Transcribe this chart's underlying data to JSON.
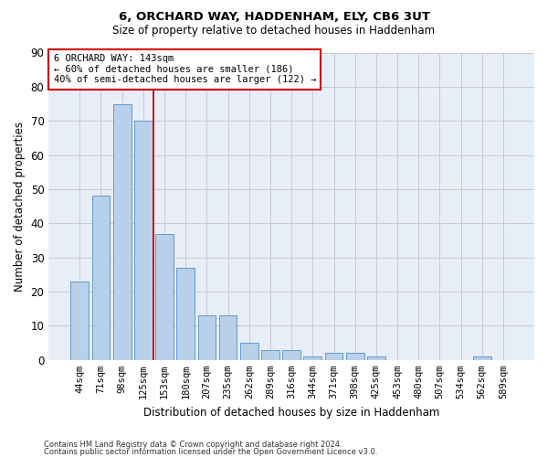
{
  "title1": "6, ORCHARD WAY, HADDENHAM, ELY, CB6 3UT",
  "title2": "Size of property relative to detached houses in Haddenham",
  "xlabel": "Distribution of detached houses by size in Haddenham",
  "ylabel": "Number of detached properties",
  "categories": [
    "44sqm",
    "71sqm",
    "98sqm",
    "125sqm",
    "153sqm",
    "180sqm",
    "207sqm",
    "235sqm",
    "262sqm",
    "289sqm",
    "316sqm",
    "344sqm",
    "371sqm",
    "398sqm",
    "425sqm",
    "453sqm",
    "480sqm",
    "507sqm",
    "534sqm",
    "562sqm",
    "589sqm"
  ],
  "values": [
    23,
    48,
    75,
    70,
    37,
    27,
    13,
    13,
    5,
    3,
    3,
    1,
    2,
    2,
    1,
    0,
    0,
    0,
    0,
    1,
    0
  ],
  "bar_color": "#b8d0ea",
  "bar_edge_color": "#6699cc",
  "grid_color": "#c8c8d8",
  "background_color": "#e8eef8",
  "annotation_line1": "6 ORCHARD WAY: 143sqm",
  "annotation_line2": "← 60% of detached houses are smaller (186)",
  "annotation_line3": "40% of semi-detached houses are larger (122) →",
  "annotation_box_edge": "#cc0000",
  "vline_x": 3.5,
  "vline_color": "#cc0000",
  "ylim": [
    0,
    90
  ],
  "yticks": [
    0,
    10,
    20,
    30,
    40,
    50,
    60,
    70,
    80,
    90
  ],
  "footer1": "Contains HM Land Registry data © Crown copyright and database right 2024.",
  "footer2": "Contains public sector information licensed under the Open Government Licence v3.0."
}
